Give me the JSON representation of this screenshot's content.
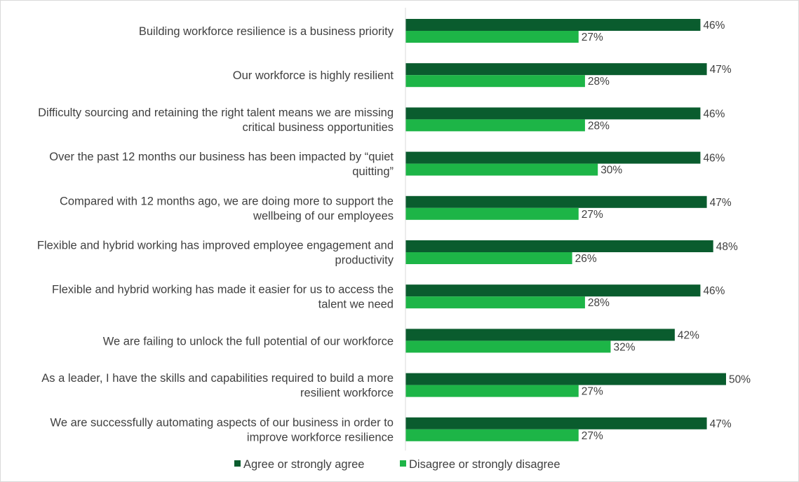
{
  "chart_data": {
    "type": "bar",
    "orientation": "horizontal",
    "categories": [
      [
        "Building workforce resilience  is a business priority"
      ],
      [
        "Our workforce is highly resilient"
      ],
      [
        "Difficulty sourcing and retaining the right talent means we are missing",
        "critical business opportunities"
      ],
      [
        "Over the past 12 months our business has been impacted by “quiet",
        "quitting”"
      ],
      [
        "Compared with 12 months ago, we are doing more to support the",
        "wellbeing of our employees"
      ],
      [
        "Flexible and hybrid working has improved employee engagement and",
        "productivity"
      ],
      [
        "Flexible and hybrid working has made it easier for us to access the",
        "talent we need"
      ],
      [
        "We are failing to unlock the full potential of our workforce"
      ],
      [
        "As a leader, I have the skills and capabilities required to build a more",
        "resilient workforce"
      ],
      [
        "We are successfully automating aspects of our business in order to",
        "improve workforce resilience"
      ]
    ],
    "series": [
      {
        "name": "Agree or strongly agree",
        "color": "#0a5c2e",
        "values": [
          46,
          47,
          46,
          46,
          47,
          48,
          46,
          42,
          50,
          47
        ],
        "labels": [
          "46%",
          "47%",
          "46%",
          "46%",
          "47%",
          "48%",
          "46%",
          "42%",
          "50%",
          "47%"
        ]
      },
      {
        "name": "Disagree or strongly disagree",
        "color": "#1db547",
        "values": [
          27,
          28,
          28,
          30,
          27,
          26,
          28,
          32,
          27,
          27
        ],
        "labels": [
          "27%",
          "28%",
          "28%",
          "30%",
          "27%",
          "26%",
          "28%",
          "32%",
          "27%",
          "27%"
        ]
      }
    ],
    "xlim": [
      0,
      54
    ],
    "grid": false,
    "legend": "bottom-center",
    "axis_color": "#d9d9d9",
    "label_color": "#404040"
  }
}
